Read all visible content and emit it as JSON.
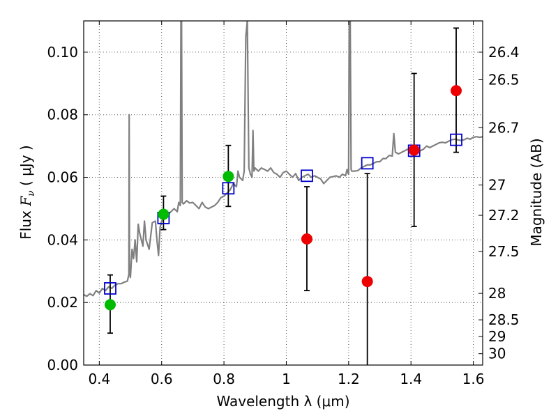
{
  "chart_data": {
    "type": "scatter",
    "xlabel": "Wavelength  λ (μm)",
    "ylabel_prefix": "Flux  ",
    "ylabel_math": "F",
    "ylabel_sub": "ν",
    "ylabel_suffix": "  ( μJy )",
    "y2label": "Magnitude (AB)",
    "xlim": [
      0.35,
      1.63
    ],
    "ylim": [
      0.0,
      0.11
    ],
    "grid": true,
    "x_ticks": [
      {
        "value": 0.4,
        "label": "0.4"
      },
      {
        "value": 0.6,
        "label": "0.6"
      },
      {
        "value": 0.8,
        "label": "0.8"
      },
      {
        "value": 1.0,
        "label": "1"
      },
      {
        "value": 1.2,
        "label": "1.2"
      },
      {
        "value": 1.4,
        "label": "1.4"
      },
      {
        "value": 1.6,
        "label": "1.6"
      }
    ],
    "y_ticks": [
      {
        "value": 0.0,
        "label": "0.00"
      },
      {
        "value": 0.02,
        "label": "0.02"
      },
      {
        "value": 0.04,
        "label": "0.04"
      },
      {
        "value": 0.06,
        "label": "0.06"
      },
      {
        "value": 0.08,
        "label": "0.08"
      },
      {
        "value": 0.1,
        "label": "0.10"
      }
    ],
    "mag_ticks": [
      {
        "mag": 26.4,
        "label": "26.4"
      },
      {
        "mag": 26.5,
        "label": "26.5"
      },
      {
        "mag": 26.7,
        "label": "26.7"
      },
      {
        "mag": 27.0,
        "label": "27"
      },
      {
        "mag": 27.2,
        "label": "27.2"
      },
      {
        "mag": 27.5,
        "label": "27.5"
      },
      {
        "mag": 28.0,
        "label": "28"
      },
      {
        "mag": 28.5,
        "label": "28.5"
      },
      {
        "mag": 29.0,
        "label": "29"
      },
      {
        "mag": 30.0,
        "label": "30"
      }
    ],
    "colors": {
      "spectrum": "#808080",
      "model": "#0000cc",
      "observed_green": "#00bb00",
      "observed_red": "#ee0000",
      "errorbar": "#000000",
      "grid": "#555555"
    },
    "spectrum": [
      [
        0.35,
        0.0225
      ],
      [
        0.36,
        0.022
      ],
      [
        0.37,
        0.0228
      ],
      [
        0.38,
        0.0222
      ],
      [
        0.39,
        0.0238
      ],
      [
        0.4,
        0.023
      ],
      [
        0.41,
        0.0245
      ],
      [
        0.42,
        0.0238
      ],
      [
        0.43,
        0.025
      ],
      [
        0.44,
        0.0245
      ],
      [
        0.45,
        0.0255
      ],
      [
        0.46,
        0.026
      ],
      [
        0.47,
        0.026
      ],
      [
        0.48,
        0.0265
      ],
      [
        0.49,
        0.0268
      ],
      [
        0.495,
        0.029
      ],
      [
        0.496,
        0.08
      ],
      [
        0.497,
        0.03
      ],
      [
        0.5,
        0.028
      ],
      [
        0.505,
        0.037
      ],
      [
        0.51,
        0.034
      ],
      [
        0.515,
        0.04
      ],
      [
        0.52,
        0.033
      ],
      [
        0.525,
        0.045
      ],
      [
        0.53,
        0.042
      ],
      [
        0.54,
        0.038
      ],
      [
        0.545,
        0.046
      ],
      [
        0.55,
        0.04
      ],
      [
        0.56,
        0.037
      ],
      [
        0.57,
        0.0455
      ],
      [
        0.58,
        0.046
      ],
      [
        0.585,
        0.04
      ],
      [
        0.59,
        0.035
      ],
      [
        0.595,
        0.044
      ],
      [
        0.6,
        0.046
      ],
      [
        0.61,
        0.047
      ],
      [
        0.62,
        0.048
      ],
      [
        0.63,
        0.049
      ],
      [
        0.64,
        0.05
      ],
      [
        0.65,
        0.049
      ],
      [
        0.655,
        0.052
      ],
      [
        0.66,
        0.051
      ],
      [
        0.662,
        0.11
      ],
      [
        0.664,
        0.11
      ],
      [
        0.666,
        0.052
      ],
      [
        0.67,
        0.0515
      ],
      [
        0.68,
        0.0525
      ],
      [
        0.69,
        0.0518
      ],
      [
        0.7,
        0.052
      ],
      [
        0.71,
        0.051
      ],
      [
        0.72,
        0.05
      ],
      [
        0.73,
        0.052
      ],
      [
        0.74,
        0.0505
      ],
      [
        0.75,
        0.05
      ],
      [
        0.76,
        0.0505
      ],
      [
        0.77,
        0.051
      ],
      [
        0.78,
        0.052
      ],
      [
        0.79,
        0.0535
      ],
      [
        0.8,
        0.054
      ],
      [
        0.81,
        0.055
      ],
      [
        0.82,
        0.056
      ],
      [
        0.83,
        0.058
      ],
      [
        0.84,
        0.057
      ],
      [
        0.845,
        0.062
      ],
      [
        0.85,
        0.06
      ],
      [
        0.86,
        0.059
      ],
      [
        0.865,
        0.062
      ],
      [
        0.87,
        0.105
      ],
      [
        0.875,
        0.11
      ],
      [
        0.88,
        0.063
      ],
      [
        0.885,
        0.061
      ],
      [
        0.89,
        0.06
      ],
      [
        0.893,
        0.075
      ],
      [
        0.896,
        0.062
      ],
      [
        0.9,
        0.063
      ],
      [
        0.91,
        0.062
      ],
      [
        0.92,
        0.063
      ],
      [
        0.93,
        0.0625
      ],
      [
        0.94,
        0.062
      ],
      [
        0.95,
        0.063
      ],
      [
        0.96,
        0.0615
      ],
      [
        0.97,
        0.061
      ],
      [
        0.98,
        0.06
      ],
      [
        0.99,
        0.0615
      ],
      [
        1.0,
        0.062
      ],
      [
        1.01,
        0.061
      ],
      [
        1.02,
        0.06
      ],
      [
        1.03,
        0.0612
      ],
      [
        1.04,
        0.059
      ],
      [
        1.05,
        0.06
      ],
      [
        1.06,
        0.0605
      ],
      [
        1.07,
        0.061
      ],
      [
        1.08,
        0.06
      ],
      [
        1.09,
        0.0605
      ],
      [
        1.1,
        0.06
      ],
      [
        1.11,
        0.0595
      ],
      [
        1.12,
        0.058
      ],
      [
        1.13,
        0.059
      ],
      [
        1.14,
        0.06
      ],
      [
        1.15,
        0.0602
      ],
      [
        1.16,
        0.0605
      ],
      [
        1.17,
        0.06
      ],
      [
        1.18,
        0.061
      ],
      [
        1.19,
        0.0605
      ],
      [
        1.195,
        0.0625
      ],
      [
        1.2,
        0.061
      ],
      [
        1.202,
        0.11
      ],
      [
        1.205,
        0.11
      ],
      [
        1.208,
        0.0625
      ],
      [
        1.21,
        0.062
      ],
      [
        1.22,
        0.062
      ],
      [
        1.23,
        0.0622
      ],
      [
        1.24,
        0.063
      ],
      [
        1.25,
        0.0635
      ],
      [
        1.26,
        0.064
      ],
      [
        1.27,
        0.064
      ],
      [
        1.28,
        0.0645
      ],
      [
        1.29,
        0.065
      ],
      [
        1.3,
        0.065
      ],
      [
        1.31,
        0.066
      ],
      [
        1.32,
        0.066
      ],
      [
        1.33,
        0.067
      ],
      [
        1.34,
        0.0668
      ],
      [
        1.345,
        0.074
      ],
      [
        1.35,
        0.068
      ],
      [
        1.36,
        0.0675
      ],
      [
        1.37,
        0.068
      ],
      [
        1.38,
        0.0685
      ],
      [
        1.39,
        0.069
      ],
      [
        1.4,
        0.069
      ],
      [
        1.41,
        0.0695
      ],
      [
        1.42,
        0.069
      ],
      [
        1.43,
        0.0685
      ],
      [
        1.44,
        0.069
      ],
      [
        1.45,
        0.07
      ],
      [
        1.46,
        0.0695
      ],
      [
        1.47,
        0.07
      ],
      [
        1.48,
        0.0705
      ],
      [
        1.49,
        0.071
      ],
      [
        1.5,
        0.0712
      ],
      [
        1.51,
        0.071
      ],
      [
        1.52,
        0.0715
      ],
      [
        1.53,
        0.072
      ],
      [
        1.54,
        0.0722
      ],
      [
        1.55,
        0.072
      ],
      [
        1.56,
        0.0718
      ],
      [
        1.57,
        0.072
      ],
      [
        1.58,
        0.0725
      ],
      [
        1.59,
        0.0722
      ],
      [
        1.6,
        0.0728
      ],
      [
        1.61,
        0.073
      ],
      [
        1.62,
        0.0728
      ],
      [
        1.63,
        0.073
      ]
    ],
    "model_points": [
      {
        "x": 0.435,
        "y": 0.0245
      },
      {
        "x": 0.606,
        "y": 0.047
      },
      {
        "x": 0.814,
        "y": 0.0565
      },
      {
        "x": 1.066,
        "y": 0.0605
      },
      {
        "x": 1.26,
        "y": 0.0645
      },
      {
        "x": 1.41,
        "y": 0.0685
      },
      {
        "x": 1.545,
        "y": 0.072
      }
    ],
    "observed_points": [
      {
        "x": 0.435,
        "y": 0.0193,
        "lo": 0.0102,
        "hi": 0.0288,
        "color": "green"
      },
      {
        "x": 0.606,
        "y": 0.0482,
        "lo": 0.0433,
        "hi": 0.054,
        "color": "green"
      },
      {
        "x": 0.814,
        "y": 0.0603,
        "lo": 0.0507,
        "hi": 0.0702,
        "color": "green"
      },
      {
        "x": 1.066,
        "y": 0.0403,
        "lo": 0.0238,
        "hi": 0.057,
        "color": "red"
      },
      {
        "x": 1.26,
        "y": 0.0267,
        "lo": 0.0,
        "hi": 0.0612,
        "color": "red"
      },
      {
        "x": 1.41,
        "y": 0.0687,
        "lo": 0.0443,
        "hi": 0.0932,
        "color": "red"
      },
      {
        "x": 1.545,
        "y": 0.0877,
        "lo": 0.068,
        "hi": 0.1077,
        "color": "red"
      }
    ]
  }
}
